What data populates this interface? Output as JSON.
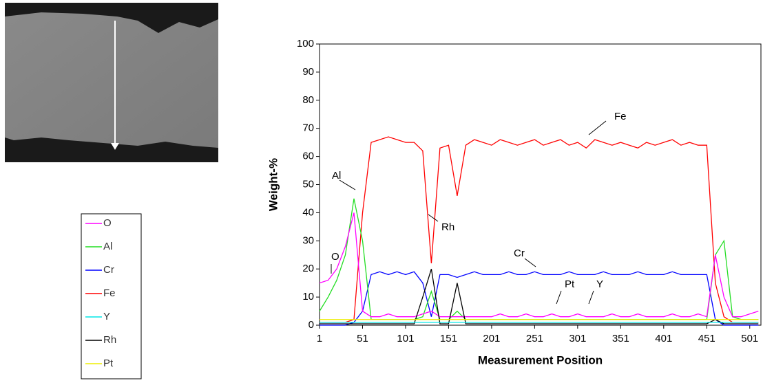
{
  "chart_data": {
    "type": "line",
    "x_label": "Measurement Position",
    "y_label": "Weight-%",
    "x": [
      1,
      11,
      21,
      31,
      41,
      51,
      61,
      71,
      81,
      91,
      101,
      111,
      121,
      131,
      141,
      151,
      161,
      171,
      181,
      191,
      201,
      211,
      221,
      231,
      241,
      251,
      261,
      271,
      281,
      291,
      301,
      311,
      321,
      331,
      341,
      351,
      361,
      371,
      381,
      391,
      401,
      411,
      421,
      431,
      441,
      451,
      461,
      471,
      481,
      491,
      501,
      511
    ],
    "xlim": [
      1,
      514
    ],
    "xticks": [
      1,
      51,
      101,
      151,
      201,
      251,
      301,
      351,
      401,
      451,
      501
    ],
    "ylim": [
      0,
      100
    ],
    "yticks": [
      0,
      10,
      20,
      30,
      40,
      50,
      60,
      70,
      80,
      90,
      100
    ],
    "series": [
      {
        "name": "O",
        "color": "#ff00ff",
        "values": [
          15,
          16,
          20,
          28,
          40,
          5,
          3,
          3,
          4,
          3,
          3,
          3,
          4,
          5,
          3,
          3,
          3,
          3,
          3,
          3,
          3,
          4,
          3,
          3,
          4,
          3,
          3,
          4,
          3,
          3,
          4,
          3,
          3,
          3,
          4,
          3,
          3,
          4,
          3,
          3,
          3,
          4,
          3,
          3,
          4,
          3,
          25,
          10,
          3,
          3,
          4,
          5
        ]
      },
      {
        "name": "Al",
        "color": "#22dd22",
        "values": [
          5,
          10,
          16,
          25,
          45,
          30,
          2,
          2,
          2,
          2,
          2,
          2,
          3,
          12,
          2,
          2,
          5,
          2,
          2,
          2,
          2,
          2,
          2,
          2,
          2,
          2,
          2,
          2,
          2,
          2,
          2,
          2,
          2,
          2,
          2,
          2,
          2,
          2,
          2,
          2,
          2,
          2,
          2,
          2,
          2,
          2,
          25,
          30,
          3,
          2,
          2,
          2
        ]
      },
      {
        "name": "Cr",
        "color": "#0000ff",
        "values": [
          0,
          0,
          0,
          0,
          1,
          5,
          18,
          19,
          18,
          19,
          18,
          19,
          15,
          3,
          18,
          18,
          17,
          18,
          19,
          18,
          18,
          18,
          19,
          18,
          18,
          19,
          18,
          18,
          18,
          19,
          18,
          18,
          18,
          19,
          18,
          18,
          18,
          19,
          18,
          18,
          18,
          19,
          18,
          18,
          18,
          18,
          2,
          0,
          0,
          0,
          0,
          0
        ]
      },
      {
        "name": "Fe",
        "color": "#ff0000",
        "values": [
          1,
          1,
          1,
          1,
          2,
          40,
          65,
          66,
          67,
          66,
          65,
          65,
          62,
          22,
          63,
          64,
          46,
          64,
          66,
          65,
          64,
          66,
          65,
          64,
          65,
          66,
          64,
          65,
          66,
          64,
          65,
          63,
          66,
          65,
          64,
          65,
          64,
          63,
          65,
          64,
          65,
          66,
          64,
          65,
          64,
          64,
          15,
          3,
          1,
          1,
          1,
          1
        ]
      },
      {
        "name": "Y",
        "color": "#00e5e5",
        "values": [
          1,
          1,
          1,
          1,
          1,
          1,
          1,
          1,
          1,
          1,
          1,
          1,
          1,
          1,
          1,
          1,
          1,
          1,
          1,
          1,
          1,
          1,
          1,
          1,
          1,
          1,
          1,
          1,
          1,
          1,
          1,
          1,
          1,
          1,
          1,
          1,
          1,
          1,
          1,
          1,
          1,
          1,
          1,
          1,
          1,
          1,
          1,
          1,
          1,
          1,
          1,
          1
        ]
      },
      {
        "name": "Rh",
        "color": "#000000",
        "values": [
          0.5,
          0.5,
          0.5,
          0.5,
          0.5,
          0.5,
          0.5,
          0.5,
          0.5,
          0.5,
          0.5,
          0.5,
          10,
          20,
          0.5,
          0.5,
          15,
          0.5,
          0.5,
          0.5,
          0.5,
          0.5,
          0.5,
          0.5,
          0.5,
          0.5,
          0.5,
          0.5,
          0.5,
          0.5,
          0.5,
          0.5,
          0.5,
          0.5,
          0.5,
          0.5,
          0.5,
          0.5,
          0.5,
          0.5,
          0.5,
          0.5,
          0.5,
          0.5,
          0.5,
          0.5,
          2,
          0.5,
          0.5,
          0.5,
          0.5,
          0.5
        ]
      },
      {
        "name": "Pt",
        "color": "#eeee00",
        "values": [
          2,
          2,
          2,
          2,
          2,
          2,
          2,
          2,
          2,
          2,
          2,
          2,
          2,
          2,
          2,
          2,
          2,
          2,
          2,
          2,
          2,
          2,
          2,
          2,
          2,
          2,
          2,
          2,
          2,
          2,
          2,
          2,
          2,
          2,
          2,
          2,
          2,
          2,
          2,
          2,
          2,
          2,
          2,
          2,
          2,
          2,
          2,
          2,
          2,
          2,
          2,
          2
        ]
      }
    ]
  }
}
